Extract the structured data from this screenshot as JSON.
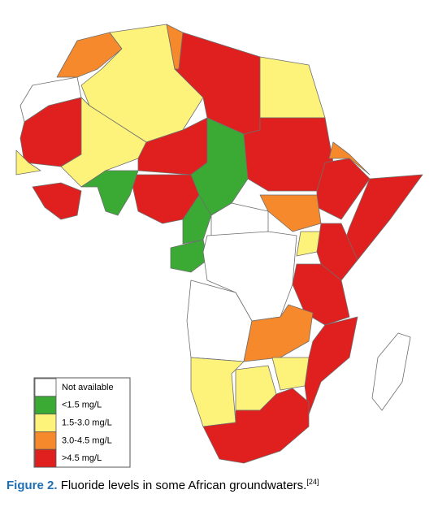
{
  "legend": {
    "items": [
      {
        "label": "Not available",
        "color": "#ffffff"
      },
      {
        "label": "<1.5 mg/L",
        "color": "#3aaa35"
      },
      {
        "label": "1.5-3.0 mg/L",
        "color": "#fdf27a"
      },
      {
        "label": "3.0-4.5 mg/L",
        "color": "#f5892b"
      },
      {
        "label": ">4.5 mg/L",
        "color": "#e0201f"
      }
    ]
  },
  "caption": {
    "label": "Figure 2.",
    "text": "Fluoride levels in some African groundwaters.",
    "reference": "[24]"
  }
}
